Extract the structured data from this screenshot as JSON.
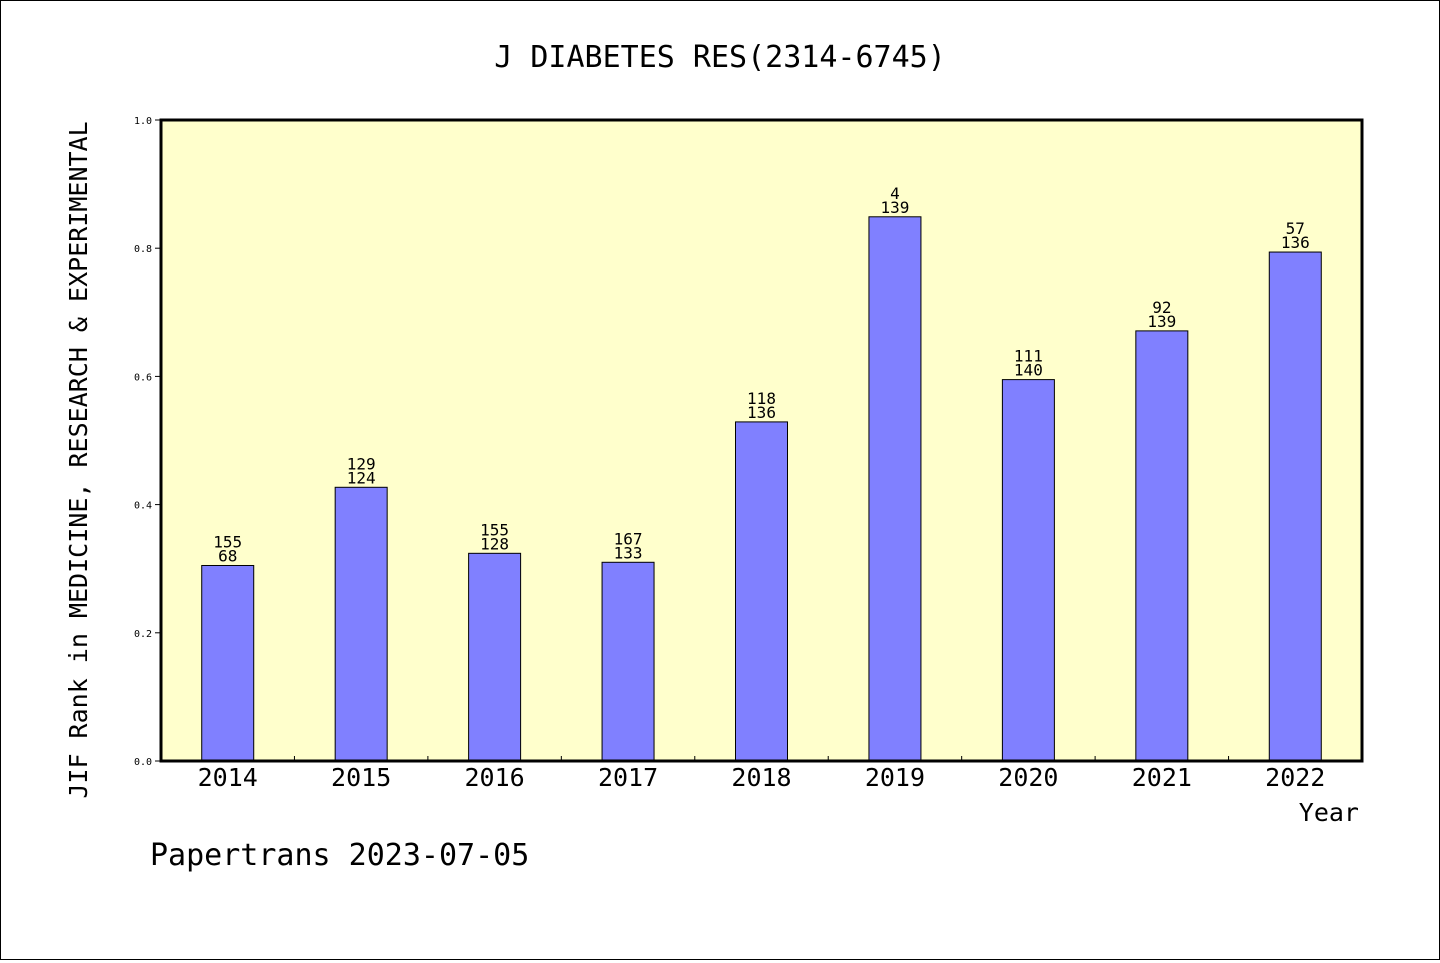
{
  "chart_data": {
    "type": "bar",
    "title": "J DIABETES RES(2314-6745)",
    "ylabel": "JIF Rank in MEDICINE, RESEARCH & EXPERIMENTAL",
    "xlabel": "Year",
    "ylim": [
      0,
      1.0
    ],
    "yticks": [
      "0.0",
      "0.2",
      "0.4",
      "0.6",
      "0.8",
      "1.0"
    ],
    "grid": false,
    "categories": [
      "2014",
      "2015",
      "2016",
      "2017",
      "2018",
      "2019",
      "2020",
      "2021",
      "2022"
    ],
    "values": [
      0.305,
      0.427,
      0.324,
      0.31,
      0.529,
      0.849,
      0.595,
      0.671,
      0.794
    ],
    "rank": [
      "155",
      "129",
      "155",
      "167",
      "118",
      "4",
      "111",
      "92",
      "57"
    ],
    "total": [
      "68",
      "124",
      "128",
      "133",
      "136",
      "139",
      "140",
      "139",
      "136"
    ],
    "colors": {
      "bar": "#8080ff",
      "plot_background": "#ffffcc",
      "axis": "#000000"
    }
  },
  "footer": {
    "credit": "Papertrans 2023-07-05"
  }
}
